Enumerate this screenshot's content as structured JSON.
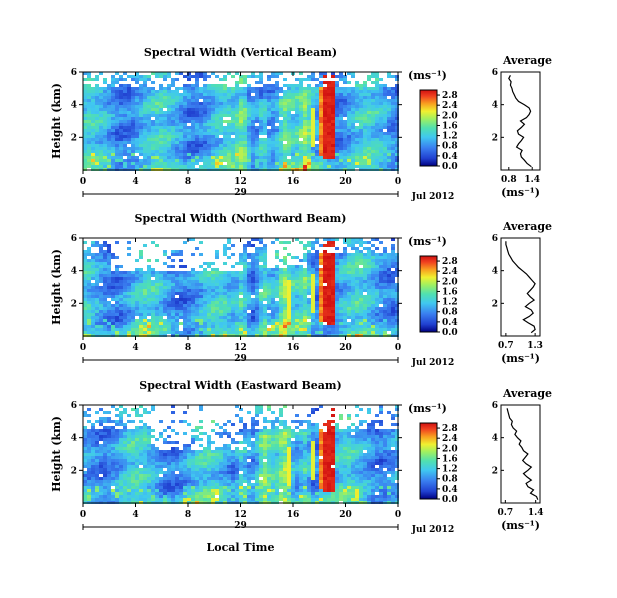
{
  "chart_data": [
    {
      "type": "heatmap",
      "title": "Spectral Width (Vertical Beam)",
      "ylabel": "Height (km)",
      "x_ticks": [
        "0",
        "4",
        "8",
        "12",
        "16",
        "20",
        "0"
      ],
      "xlim": [
        0,
        24
      ],
      "y_ticks": [
        "2",
        "4",
        "6"
      ],
      "ylim": [
        0,
        6
      ],
      "day_label": "29",
      "month_label": "Jul 2012",
      "colorbar": {
        "unit": "(ms⁻¹)",
        "ticks": [
          "0.0",
          "0.4",
          "0.8",
          "1.2",
          "1.6",
          "2.0",
          "2.4",
          "2.8"
        ],
        "range": [
          0.0,
          3.0
        ]
      },
      "average": {
        "type": "line",
        "title": "Average",
        "xlabel": "(ms⁻¹)",
        "x_ticks": [
          "0.8",
          "1.4"
        ],
        "y_ticks": [
          "2",
          "4",
          "6"
        ],
        "xlim": [
          0.6,
          1.6
        ],
        "ylim": [
          0,
          6
        ],
        "height_km": [
          0.2,
          0.4,
          0.6,
          0.8,
          1.0,
          1.2,
          1.4,
          1.6,
          1.8,
          2.0,
          2.2,
          2.4,
          2.6,
          2.8,
          3.0,
          3.2,
          3.4,
          3.6,
          3.8,
          4.0,
          4.2,
          4.4,
          4.6,
          4.8,
          5.0,
          5.2,
          5.4,
          5.6,
          5.8
        ],
        "width_ms": [
          1.38,
          1.27,
          1.2,
          1.12,
          1.1,
          1.14,
          1.0,
          1.05,
          1.12,
          1.18,
          1.05,
          1.02,
          1.12,
          1.2,
          1.1,
          1.25,
          1.32,
          1.36,
          1.32,
          1.2,
          1.05,
          0.98,
          0.94,
          0.9,
          0.88,
          0.84,
          0.86,
          0.8,
          0.84
        ]
      }
    },
    {
      "type": "heatmap",
      "title": "Spectral Width (Northward Beam)",
      "ylabel": "Height (km)",
      "x_ticks": [
        "0",
        "4",
        "8",
        "12",
        "16",
        "20",
        "0"
      ],
      "xlim": [
        0,
        24
      ],
      "y_ticks": [
        "2",
        "4",
        "6"
      ],
      "ylim": [
        0,
        6
      ],
      "day_label": "29",
      "month_label": "Jul 2012",
      "colorbar": {
        "unit": "(ms⁻¹)",
        "ticks": [
          "0.0",
          "0.4",
          "0.8",
          "1.2",
          "1.6",
          "2.0",
          "2.4",
          "2.8"
        ],
        "range": [
          0.0,
          3.0
        ]
      },
      "average": {
        "type": "line",
        "title": "Average",
        "xlabel": "(ms⁻¹)",
        "x_ticks": [
          "0.7",
          "1.3"
        ],
        "y_ticks": [
          "2",
          "4",
          "6"
        ],
        "xlim": [
          0.6,
          1.4
        ],
        "ylim": [
          0,
          6
        ],
        "height_km": [
          0.2,
          0.4,
          0.6,
          0.8,
          1.0,
          1.2,
          1.4,
          1.6,
          1.8,
          2.0,
          2.2,
          2.4,
          2.6,
          2.8,
          3.0,
          3.2,
          3.4,
          3.6,
          3.8,
          4.0,
          4.2,
          4.4,
          4.6,
          4.8,
          5.0,
          5.2,
          5.4,
          5.6,
          5.8
        ],
        "width_ms": [
          1.22,
          1.3,
          1.28,
          1.16,
          1.06,
          1.18,
          1.26,
          1.22,
          1.1,
          1.18,
          1.28,
          1.2,
          1.14,
          1.2,
          1.26,
          1.3,
          1.24,
          1.18,
          1.12,
          1.04,
          0.96,
          0.9,
          0.84,
          0.8,
          0.76,
          0.74,
          0.72,
          0.7,
          0.7
        ]
      }
    },
    {
      "type": "heatmap",
      "title": "Spectral Width (Eastward Beam)",
      "ylabel": "Height (km)",
      "xlabel": "Local Time",
      "x_ticks": [
        "0",
        "4",
        "8",
        "12",
        "16",
        "20",
        "0"
      ],
      "xlim": [
        0,
        24
      ],
      "y_ticks": [
        "2",
        "4",
        "6"
      ],
      "ylim": [
        0,
        6
      ],
      "day_label": "29",
      "month_label": "Jul 2012",
      "colorbar": {
        "unit": "(ms⁻¹)",
        "ticks": [
          "0.0",
          "0.4",
          "0.8",
          "1.2",
          "1.6",
          "2.0",
          "2.4",
          "2.8"
        ],
        "range": [
          0.0,
          3.0
        ]
      },
      "average": {
        "type": "line",
        "title": "Average",
        "xlabel": "(ms⁻¹)",
        "x_ticks": [
          "0.7",
          "1.4"
        ],
        "y_ticks": [
          "2",
          "4",
          "6"
        ],
        "xlim": [
          0.6,
          1.5
        ],
        "ylim": [
          0,
          6
        ],
        "height_km": [
          0.2,
          0.4,
          0.6,
          0.8,
          1.0,
          1.2,
          1.4,
          1.6,
          1.8,
          2.0,
          2.2,
          2.4,
          2.6,
          2.8,
          3.0,
          3.2,
          3.4,
          3.6,
          3.8,
          4.0,
          4.2,
          4.4,
          4.6,
          4.8,
          5.0,
          5.2,
          5.4,
          5.6,
          5.8
        ],
        "width_ms": [
          1.45,
          1.42,
          1.28,
          1.35,
          1.22,
          1.18,
          1.3,
          1.2,
          1.12,
          1.22,
          1.3,
          1.18,
          1.1,
          1.16,
          1.22,
          1.12,
          1.08,
          1.02,
          1.06,
          0.98,
          0.92,
          0.96,
          0.88,
          0.84,
          0.86,
          0.8,
          0.78,
          0.76,
          0.74
        ]
      }
    }
  ]
}
